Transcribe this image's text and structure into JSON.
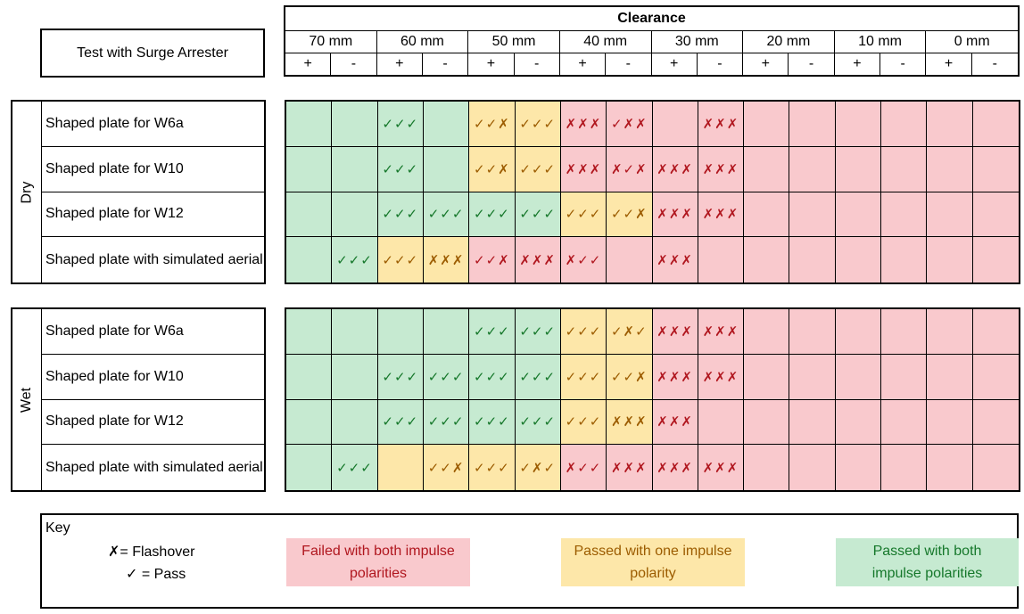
{
  "title_box": "Test with Surge Arrester",
  "header": {
    "clearance": "Clearance",
    "clearances": [
      "70 mm",
      "60 mm",
      "50 mm",
      "40 mm",
      "30 mm",
      "20 mm",
      "10 mm",
      "0 mm"
    ],
    "polarities": [
      "+",
      "-"
    ]
  },
  "groups": [
    {
      "name": "Dry",
      "rows": [
        {
          "label": "Shaped plate for W6a",
          "cells": [
            [
              "g",
              ""
            ],
            [
              "g",
              ""
            ],
            [
              "g",
              "✓✓✓"
            ],
            [
              "g",
              ""
            ],
            [
              "y",
              "✓✓✗"
            ],
            [
              "y",
              "✓✓✓"
            ],
            [
              "r",
              "✗✗✗"
            ],
            [
              "r",
              "✓✗✗"
            ],
            [
              "r",
              ""
            ],
            [
              "r",
              "✗✗✗"
            ],
            [
              "r",
              ""
            ],
            [
              "r",
              ""
            ],
            [
              "r",
              ""
            ],
            [
              "r",
              ""
            ],
            [
              "r",
              ""
            ],
            [
              "r",
              ""
            ]
          ]
        },
        {
          "label": "Shaped plate for W10",
          "cells": [
            [
              "g",
              ""
            ],
            [
              "g",
              ""
            ],
            [
              "g",
              "✓✓✓"
            ],
            [
              "g",
              ""
            ],
            [
              "y",
              "✓✓✗"
            ],
            [
              "y",
              "✓✓✓"
            ],
            [
              "r",
              "✗✗✗"
            ],
            [
              "r",
              "✗✓✗"
            ],
            [
              "r",
              "✗✗✗"
            ],
            [
              "r",
              "✗✗✗"
            ],
            [
              "r",
              ""
            ],
            [
              "r",
              ""
            ],
            [
              "r",
              ""
            ],
            [
              "r",
              ""
            ],
            [
              "r",
              ""
            ],
            [
              "r",
              ""
            ]
          ]
        },
        {
          "label": "Shaped plate for W12",
          "cells": [
            [
              "g",
              ""
            ],
            [
              "g",
              ""
            ],
            [
              "g",
              "✓✓✓"
            ],
            [
              "g",
              "✓✓✓"
            ],
            [
              "g",
              "✓✓✓"
            ],
            [
              "g",
              "✓✓✓"
            ],
            [
              "y",
              "✓✓✓"
            ],
            [
              "y",
              "✓✓✗"
            ],
            [
              "r",
              "✗✗✗"
            ],
            [
              "r",
              "✗✗✗"
            ],
            [
              "r",
              ""
            ],
            [
              "r",
              ""
            ],
            [
              "r",
              ""
            ],
            [
              "r",
              ""
            ],
            [
              "r",
              ""
            ],
            [
              "r",
              ""
            ]
          ]
        },
        {
          "label": "Shaped plate with simulated aerial",
          "cells": [
            [
              "g",
              ""
            ],
            [
              "g",
              "✓✓✓"
            ],
            [
              "y",
              "✓✓✓"
            ],
            [
              "y",
              "✗✗✗"
            ],
            [
              "r",
              "✓✓✗"
            ],
            [
              "r",
              "✗✗✗"
            ],
            [
              "r",
              "✗✓✓"
            ],
            [
              "r",
              ""
            ],
            [
              "r",
              "✗✗✗"
            ],
            [
              "r",
              ""
            ],
            [
              "r",
              ""
            ],
            [
              "r",
              ""
            ],
            [
              "r",
              ""
            ],
            [
              "r",
              ""
            ],
            [
              "r",
              ""
            ],
            [
              "r",
              ""
            ]
          ]
        }
      ]
    },
    {
      "name": "Wet",
      "rows": [
        {
          "label": "Shaped plate for W6a",
          "cells": [
            [
              "g",
              ""
            ],
            [
              "g",
              ""
            ],
            [
              "g",
              ""
            ],
            [
              "g",
              ""
            ],
            [
              "g",
              "✓✓✓"
            ],
            [
              "g",
              "✓✓✓"
            ],
            [
              "y",
              "✓✓✓"
            ],
            [
              "y",
              "✓✗✓"
            ],
            [
              "r",
              "✗✗✗"
            ],
            [
              "r",
              "✗✗✗"
            ],
            [
              "r",
              ""
            ],
            [
              "r",
              ""
            ],
            [
              "r",
              ""
            ],
            [
              "r",
              ""
            ],
            [
              "r",
              ""
            ],
            [
              "r",
              ""
            ]
          ]
        },
        {
          "label": "Shaped plate for W10",
          "cells": [
            [
              "g",
              ""
            ],
            [
              "g",
              ""
            ],
            [
              "g",
              "✓✓✓"
            ],
            [
              "g",
              "✓✓✓"
            ],
            [
              "g",
              "✓✓✓"
            ],
            [
              "g",
              "✓✓✓"
            ],
            [
              "y",
              "✓✓✓"
            ],
            [
              "y",
              "✓✓✗"
            ],
            [
              "r",
              "✗✗✗"
            ],
            [
              "r",
              "✗✗✗"
            ],
            [
              "r",
              ""
            ],
            [
              "r",
              ""
            ],
            [
              "r",
              ""
            ],
            [
              "r",
              ""
            ],
            [
              "r",
              ""
            ],
            [
              "r",
              ""
            ]
          ]
        },
        {
          "label": "Shaped plate for W12",
          "cells": [
            [
              "g",
              ""
            ],
            [
              "g",
              ""
            ],
            [
              "g",
              "✓✓✓"
            ],
            [
              "g",
              "✓✓✓"
            ],
            [
              "g",
              "✓✓✓"
            ],
            [
              "g",
              "✓✓✓"
            ],
            [
              "y",
              "✓✓✓"
            ],
            [
              "y",
              "✗✗✗"
            ],
            [
              "r",
              "✗✗✗"
            ],
            [
              "r",
              ""
            ],
            [
              "r",
              ""
            ],
            [
              "r",
              ""
            ],
            [
              "r",
              ""
            ],
            [
              "r",
              ""
            ],
            [
              "r",
              ""
            ],
            [
              "r",
              ""
            ]
          ]
        },
        {
          "label": "Shaped plate with simulated aerial",
          "cells": [
            [
              "g",
              ""
            ],
            [
              "g",
              "✓✓✓"
            ],
            [
              "y",
              ""
            ],
            [
              "y",
              "✓✓✗"
            ],
            [
              "y",
              "✓✓✓"
            ],
            [
              "y",
              "✓✗✓"
            ],
            [
              "r",
              "✗✓✓"
            ],
            [
              "r",
              "✗✗✗"
            ],
            [
              "r",
              "✗✗✗"
            ],
            [
              "r",
              "✗✗✗"
            ],
            [
              "r",
              ""
            ],
            [
              "r",
              ""
            ],
            [
              "r",
              ""
            ],
            [
              "r",
              ""
            ],
            [
              "r",
              ""
            ],
            [
              "r",
              ""
            ]
          ]
        }
      ]
    }
  ],
  "key": {
    "title": "Key",
    "flashover": "✗= Flashover",
    "pass": "✓ = Pass",
    "failed_both": "Failed with both impulse polarities",
    "passed_one": "Passed with one impulse polarity",
    "passed_both": "Passed with both impulse polarities"
  },
  "colors": {
    "red": "#f9c9cd",
    "yellow": "#fde7a9",
    "green": "#c6ead1",
    "red_text": "#b0161e",
    "yellow_text": "#9c5c00",
    "green_text": "#16782b"
  }
}
